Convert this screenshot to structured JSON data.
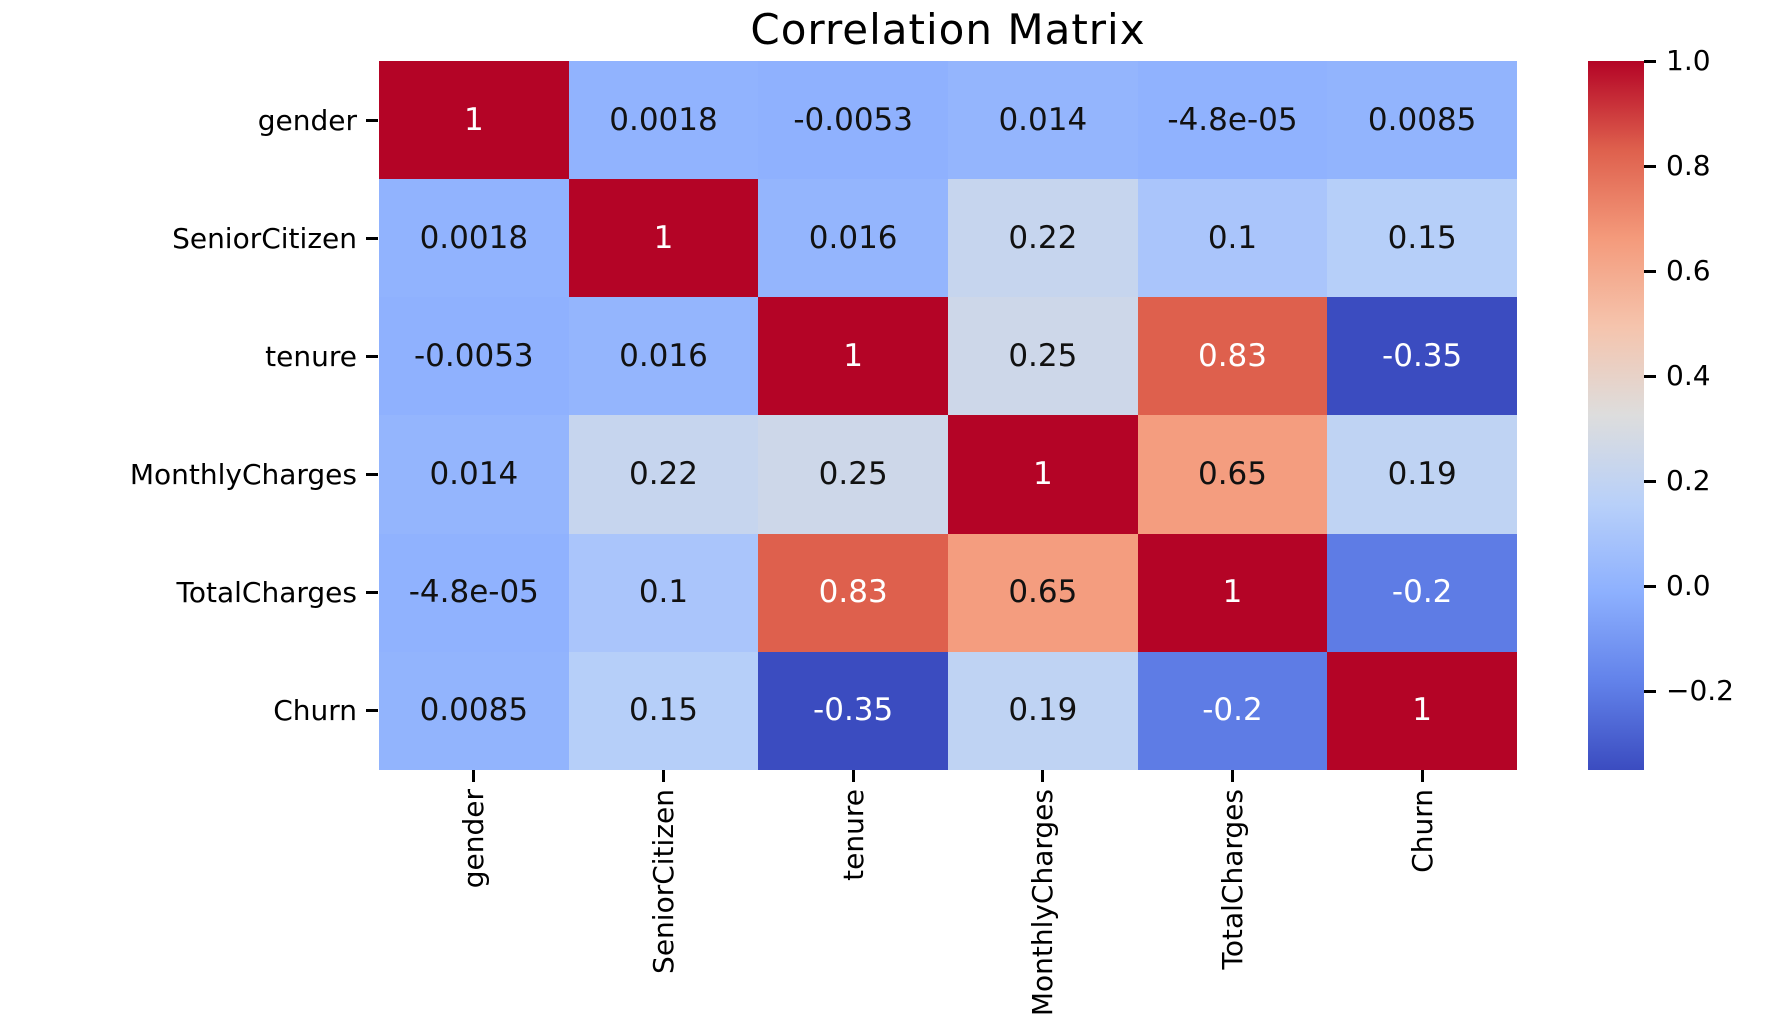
{
  "figure": {
    "background": "#ffffff"
  },
  "chart_data": {
    "type": "heatmap",
    "title": "Correlation Matrix",
    "variables": [
      "gender",
      "SeniorCitizen",
      "tenure",
      "MonthlyCharges",
      "TotalCharges",
      "Churn"
    ],
    "matrix": [
      [
        1,
        0.0018,
        -0.0053,
        0.014,
        -4.8e-05,
        0.0085
      ],
      [
        0.0018,
        1,
        0.016,
        0.22,
        0.1,
        0.15
      ],
      [
        -0.0053,
        0.016,
        1,
        0.25,
        0.83,
        -0.35
      ],
      [
        0.014,
        0.22,
        0.25,
        1,
        0.65,
        0.19
      ],
      [
        -4.8e-05,
        0.1,
        0.83,
        0.65,
        1,
        -0.2
      ],
      [
        0.0085,
        0.15,
        -0.35,
        0.19,
        -0.2,
        1
      ]
    ],
    "annotations": [
      [
        "1",
        "0.0018",
        "-0.0053",
        "0.014",
        "-4.8e-05",
        "0.0085"
      ],
      [
        "0.0018",
        "1",
        "0.016",
        "0.22",
        "0.1",
        "0.15"
      ],
      [
        "-0.0053",
        "0.016",
        "1",
        "0.25",
        "0.83",
        "-0.35"
      ],
      [
        "0.014",
        "0.22",
        "0.25",
        "1",
        "0.65",
        "0.19"
      ],
      [
        "-4.8e-05",
        "0.1",
        "0.83",
        "0.65",
        "1",
        "-0.2"
      ],
      [
        "0.0085",
        "0.15",
        "-0.35",
        "0.19",
        "-0.2",
        "1"
      ]
    ],
    "colormap": {
      "name": "coolwarm",
      "vmin": -0.35,
      "vmax": 1.0,
      "anchors": [
        "#3b4cc0",
        "#6282ea",
        "#8db0fe",
        "#b8d0f9",
        "#dddddd",
        "#f5c4ad",
        "#f49a7b",
        "#de604d",
        "#b40426"
      ]
    },
    "colorbar": {
      "position": "right",
      "tick_labels": [
        "1.0",
        "0.8",
        "0.6",
        "0.4",
        "0.2",
        "0.0",
        "−0.2"
      ],
      "tick_values": [
        1.0,
        0.8,
        0.6,
        0.4,
        0.2,
        0.0,
        -0.2
      ]
    },
    "axis": {
      "tick_color": "#000000",
      "label_color": "#000000"
    },
    "annotation_colors": {
      "on_light": "#111111",
      "on_dark": "#ffffff"
    },
    "grid": false
  }
}
